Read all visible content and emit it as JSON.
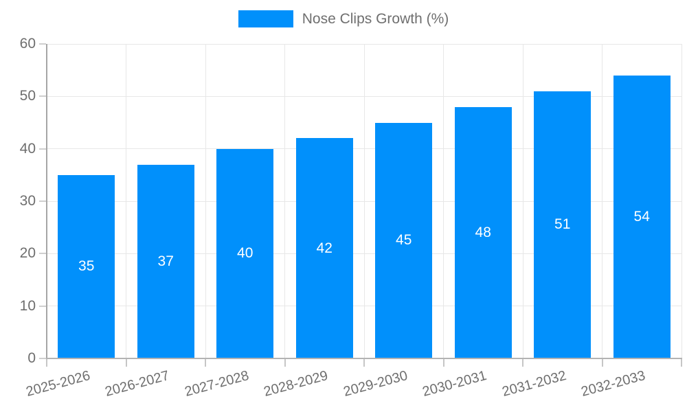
{
  "chart_data": {
    "type": "bar",
    "title": "",
    "xlabel": "",
    "ylabel": "",
    "categories": [
      "2025-2026",
      "2026-2027",
      "2027-2028",
      "2028-2029",
      "2029-2030",
      "2030-2031",
      "2031-2032",
      "2032-2033"
    ],
    "series": [
      {
        "name": "Nose Clips Growth (%)",
        "values": [
          35,
          37,
          40,
          42,
          45,
          48,
          51,
          54
        ],
        "color": "#0190fb"
      }
    ],
    "data_labels": [
      "35",
      "37",
      "40",
      "42",
      "45",
      "48",
      "51",
      "54"
    ],
    "ylim": [
      0,
      60
    ],
    "yticks": [
      0,
      10,
      20,
      30,
      40,
      50,
      60
    ],
    "grid": true,
    "legend_position": "top",
    "x_label_rotation_deg": -15
  },
  "legend": {
    "label": "Nose Clips Growth (%)"
  },
  "colors": {
    "bar": "#0190fb",
    "data_label_text": "#ffffff",
    "tick_text": "#6e6e6e",
    "legend_text": "#6f6f6f",
    "background": "#ffffff"
  }
}
